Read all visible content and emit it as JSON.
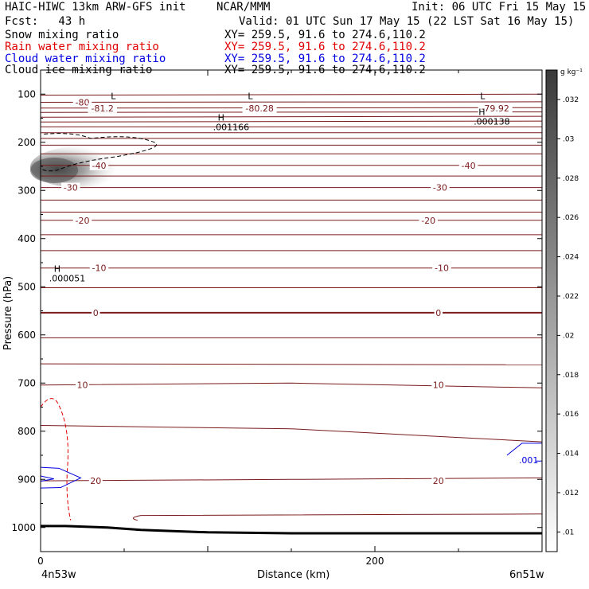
{
  "header": {
    "model": "HAIC-HIWC 13km ARW-GFS init",
    "institution": "NCAR/MMM",
    "init": "Init: 06 UTC Fri 15 May 15",
    "fcst": "Fcst:   43 h",
    "valid": "Valid: 01 UTC Sun 17 May 15 (22 LST Sat 16 May 15)",
    "fields": [
      {
        "name": "Snow mixing ratio",
        "xy": "XY= 259.5, 91.6 to 274.6,110.2",
        "color": "#000000"
      },
      {
        "name": "Rain water mixing ratio",
        "xy": "XY= 259.5, 91.6 to 274.6,110.2",
        "color": "#e00000"
      },
      {
        "name": "Cloud water mixing ratio",
        "xy": "XY= 259.5, 91.6 to 274.6,110.2",
        "color": "#0000e0"
      },
      {
        "name": "Cloud ice mixing ratio",
        "xy": "XY= 259.5, 91.6 to 274.6,110.2",
        "color": "#000000"
      }
    ]
  },
  "chart_data": {
    "type": "heatmap",
    "xlabel": "Distance (km)",
    "ylabel": "Pressure (hPa)",
    "xlim": [
      0,
      300
    ],
    "ylim": [
      1050,
      50
    ],
    "x_ticks": [
      0,
      200
    ],
    "y_ticks": [
      100,
      200,
      300,
      400,
      500,
      600,
      700,
      800,
      900,
      1000
    ],
    "x_left_label": "4n53w",
    "x_right_label": "6n51w",
    "colorbar": {
      "unit": "g kg⁻¹",
      "ticks": [
        ".01",
        ".012",
        ".014",
        ".016",
        ".018",
        ".02",
        ".022",
        ".024",
        ".026",
        ".028",
        ".03",
        ".032"
      ],
      "values": [
        0.01,
        0.012,
        0.014,
        0.016,
        0.018,
        0.02,
        0.022,
        0.024,
        0.026,
        0.028,
        0.03,
        0.032
      ]
    },
    "temperature_contours": {
      "color": "#7a1a1a",
      "labels": [
        {
          "text": "-80",
          "x": 25,
          "p": 117
        },
        {
          "text": "-81.2",
          "x": 37,
          "p": 129
        },
        {
          "text": "-80.28",
          "x": 131,
          "p": 129
        },
        {
          "text": "-79.92",
          "x": 272,
          "p": 129
        },
        {
          "text": "-40",
          "x": 35,
          "p": 248
        },
        {
          "text": "-40",
          "x": 256,
          "p": 248
        },
        {
          "text": "-30",
          "x": 18,
          "p": 294
        },
        {
          "text": "-30",
          "x": 239,
          "p": 294
        },
        {
          "text": "-20",
          "x": 25,
          "p": 362
        },
        {
          "text": "-20",
          "x": 232,
          "p": 362
        },
        {
          "text": "-10",
          "x": 35,
          "p": 461
        },
        {
          "text": "-10",
          "x": 240,
          "p": 461
        },
        {
          "text": "0",
          "x": 33,
          "p": 554
        },
        {
          "text": "0",
          "x": 238,
          "p": 554
        },
        {
          "text": "10",
          "x": 25,
          "p": 704
        },
        {
          "text": "10",
          "x": 238,
          "p": 704
        },
        {
          "text": "20",
          "x": 33,
          "p": 903
        },
        {
          "text": "20",
          "x": 238,
          "p": 903
        }
      ]
    },
    "extrema": [
      {
        "letter": "L",
        "value": "",
        "x": 42,
        "p": 110
      },
      {
        "letter": "L",
        "value": "",
        "x": 124,
        "p": 110
      },
      {
        "letter": "L",
        "value": "",
        "x": 263,
        "p": 110
      },
      {
        "letter": "H",
        "value": ".001166",
        "x": 106,
        "p": 155
      },
      {
        "letter": "H",
        "value": ".000138",
        "x": 262,
        "p": 143
      },
      {
        "letter": "H",
        "value": ".000051",
        "x": 8,
        "p": 469
      }
    ],
    "cloud_water_label": {
      "text": ".001",
      "x": 292,
      "p": 860
    },
    "terrain": [
      {
        "x": 0,
        "p": 997
      },
      {
        "x": 15,
        "p": 997
      },
      {
        "x": 40,
        "p": 1000
      },
      {
        "x": 60,
        "p": 1005
      },
      {
        "x": 100,
        "p": 1010
      },
      {
        "x": 150,
        "p": 1012
      },
      {
        "x": 300,
        "p": 1012
      }
    ]
  }
}
